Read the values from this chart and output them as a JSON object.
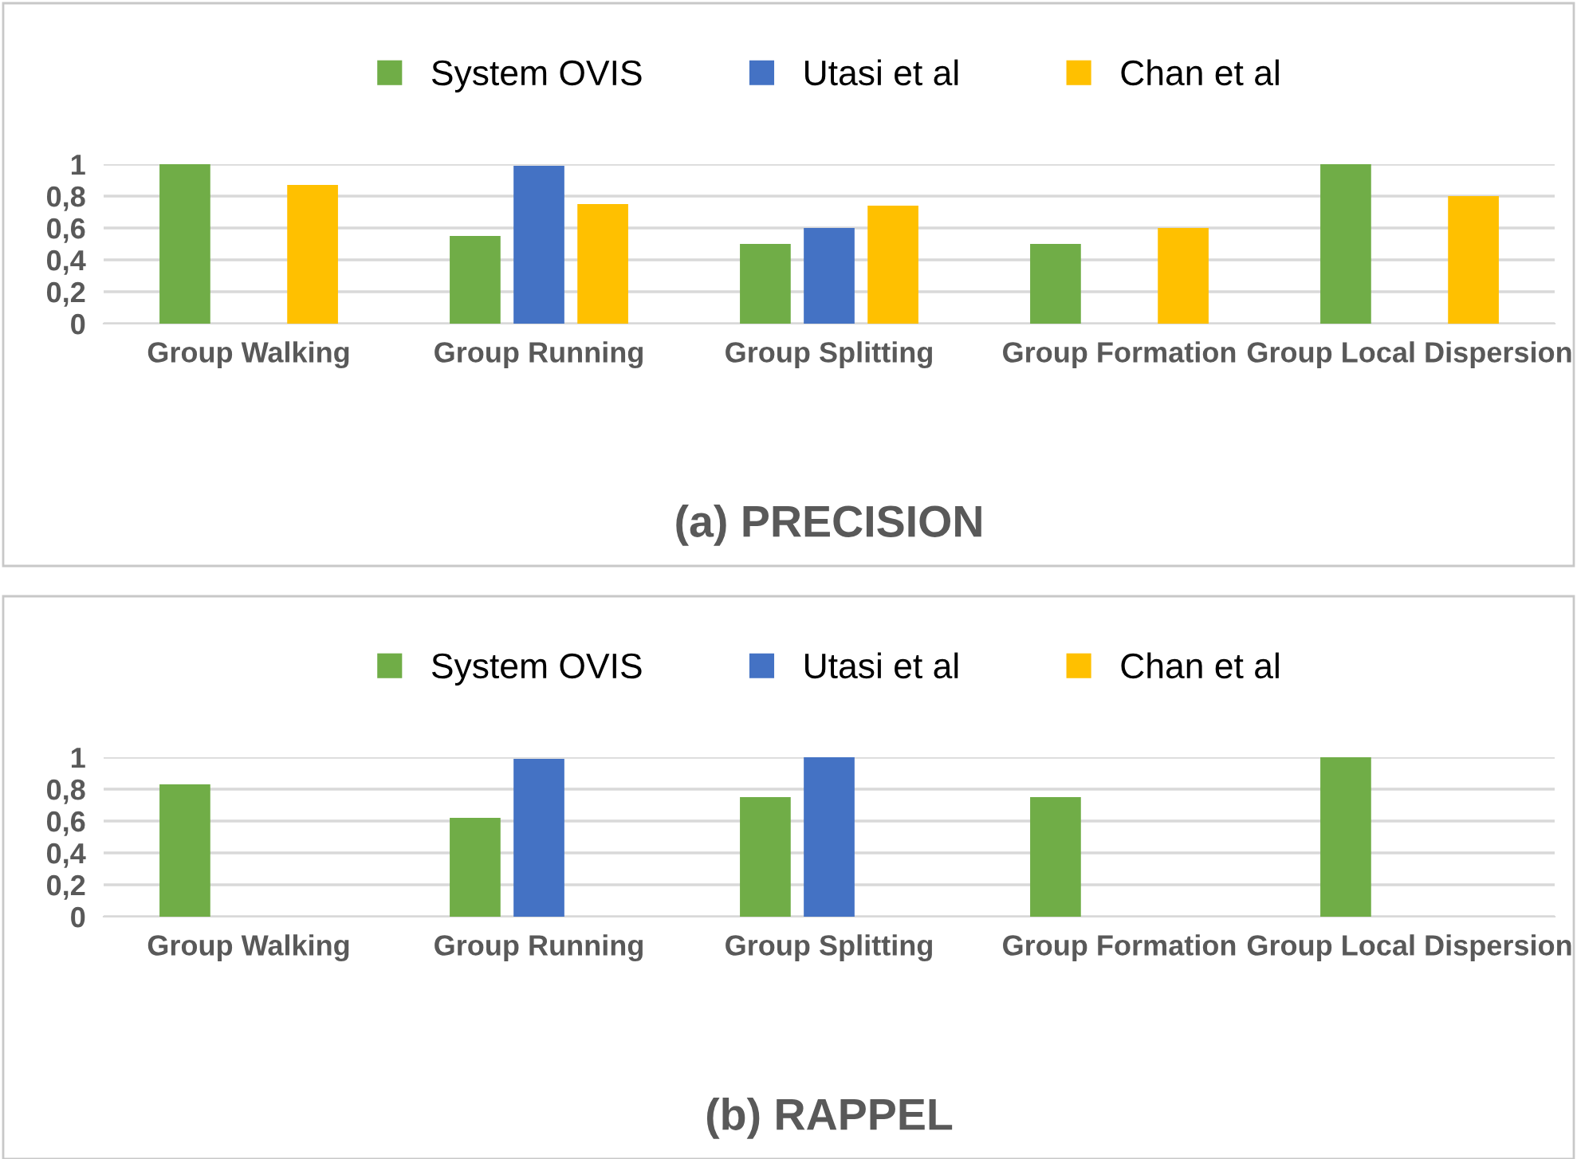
{
  "chart_data": [
    {
      "type": "bar",
      "title": "(a) PRECISION",
      "categories": [
        "Group Walking",
        "Group Running",
        "Group Splitting",
        "Group Formation",
        "Group Local Dispersion"
      ],
      "series": [
        {
          "name": "System OVIS",
          "color": "#70ad47",
          "values": [
            1,
            0.55,
            0.5,
            0.5,
            1
          ]
        },
        {
          "name": "Utasi et al",
          "color": "#4472c4",
          "values": [
            null,
            0.99,
            0.6,
            null,
            null
          ]
        },
        {
          "name": "Chan et al",
          "color": "#ffc000",
          "values": [
            0.87,
            0.75,
            0.74,
            0.6,
            0.8
          ]
        }
      ],
      "ylim": [
        0,
        1
      ],
      "yticks": [
        0,
        {
          "value": 0.2,
          "label": "0,2"
        },
        {
          "value": 0.4,
          "label": "0,4"
        },
        {
          "value": 0.6,
          "label": "0,6"
        },
        {
          "value": 0.8,
          "label": "0,8"
        },
        1
      ],
      "grid": "y",
      "legend": "top"
    },
    {
      "type": "bar",
      "title": "(b) RAPPEL",
      "categories": [
        "Group Walking",
        "Group Running",
        "Group Splitting",
        "Group Formation",
        "Group Local Dispersion"
      ],
      "series": [
        {
          "name": "System OVIS",
          "color": "#70ad47",
          "values": [
            0.83,
            0.62,
            0.75,
            0.75,
            1
          ]
        },
        {
          "name": "Utasi et al",
          "color": "#4472c4",
          "values": [
            null,
            0.99,
            1,
            null,
            null
          ]
        },
        {
          "name": "Chan et al",
          "color": "#ffc000",
          "values": [
            null,
            null,
            null,
            null,
            null
          ]
        }
      ],
      "ylim": [
        0,
        1
      ],
      "yticks": [
        0,
        {
          "value": 0.2,
          "label": "0,2"
        },
        {
          "value": 0.4,
          "label": "0,4"
        },
        {
          "value": 0.6,
          "label": "0,6"
        },
        {
          "value": 0.8,
          "label": "0,8"
        },
        1
      ],
      "grid": "y",
      "legend": "top"
    }
  ]
}
